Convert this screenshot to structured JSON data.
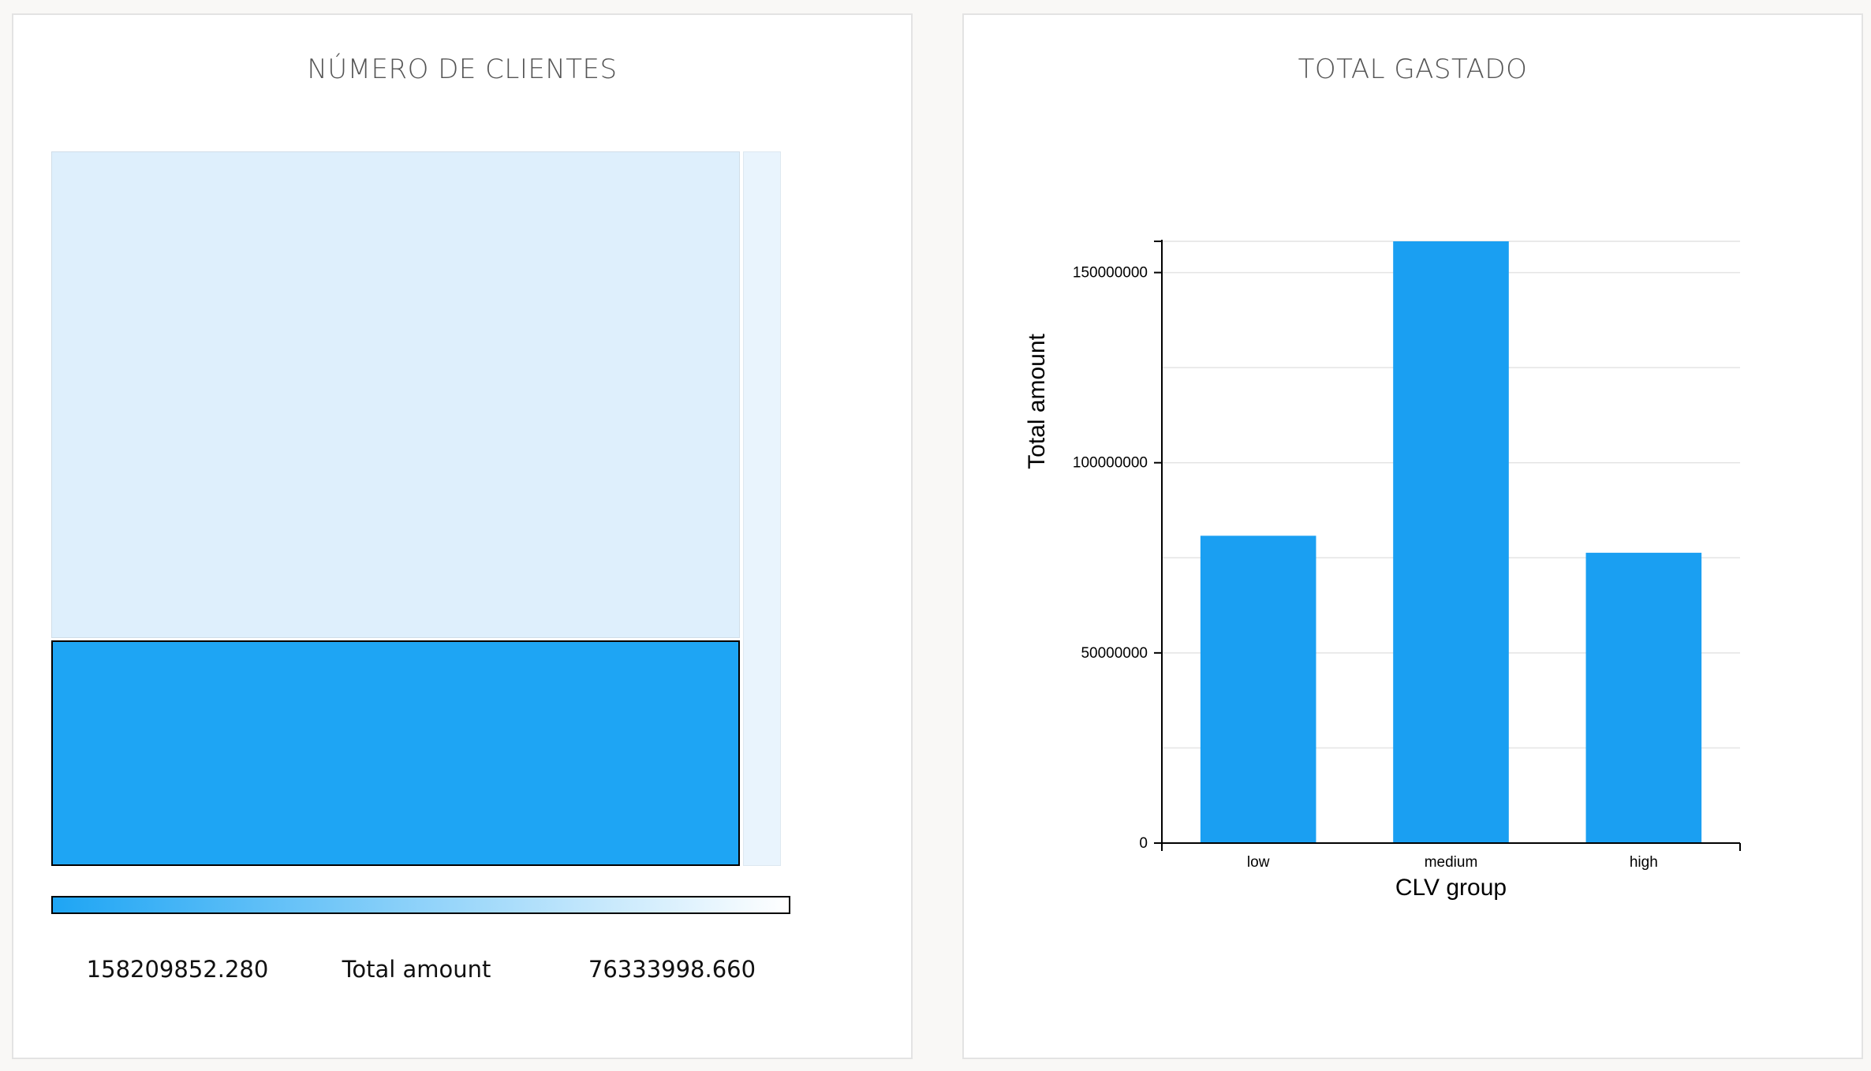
{
  "treemap": {
    "title": "NÚMERO DE CLIENTES",
    "legend": {
      "min_label": "158209852.280",
      "title": "Total amount",
      "max_label": "76333998.660",
      "color_start": "#1ea5f4",
      "color_end": "#ffffff"
    },
    "cells": [
      {
        "name": "cell-top",
        "color": "#deeffc",
        "border": "#d0dde8",
        "highlighted": false
      },
      {
        "name": "cell-bottom",
        "color": "#1ea5f4",
        "border": "#000000",
        "highlighted": true
      },
      {
        "name": "cell-side",
        "color": "#e9f4fd",
        "border": "#dde8f0",
        "highlighted": false
      }
    ]
  },
  "bar_chart": {
    "title": "TOTAL GASTADO",
    "bar_color": "#1a9ff2"
  },
  "chart_data": {
    "type": "bar",
    "categories": [
      "low",
      "medium",
      "high"
    ],
    "values": [
      80800000,
      158209852.28,
      76333998.66
    ],
    "xlabel": "CLV group",
    "ylabel": "Total amount",
    "ylim": [
      0,
      158209852.28
    ],
    "yticks": [
      0,
      50000000,
      100000000,
      150000000
    ],
    "ytick_labels": [
      "0",
      "50000000",
      "100000000",
      "150000000"
    ],
    "grid": true
  }
}
